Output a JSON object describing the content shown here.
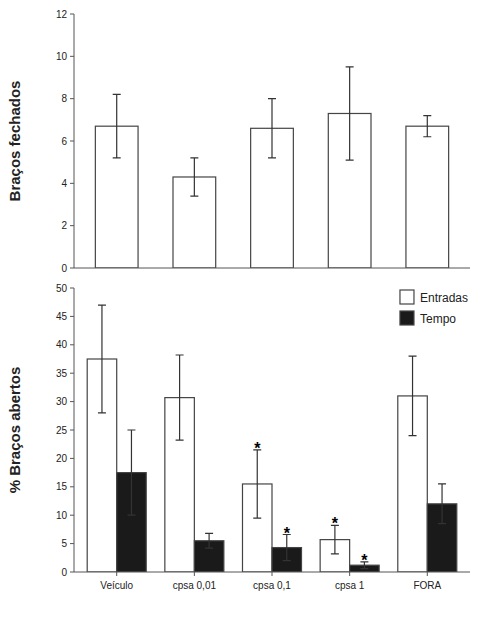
{
  "chart_data": [
    {
      "type": "bar",
      "ylabel": "Braços fechados",
      "categories": [
        null,
        null,
        null,
        null,
        null
      ],
      "values": [
        6.7,
        4.3,
        6.6,
        7.3,
        6.7
      ],
      "errors": [
        1.5,
        0.9,
        1.4,
        2.2,
        0.5
      ],
      "color": "#ffffff",
      "ylim": [
        0,
        12
      ],
      "yticks": [
        0,
        2,
        4,
        6,
        8,
        10,
        12
      ],
      "grid": false
    },
    {
      "type": "bar",
      "ylabel": "% Braços abertos",
      "categories": [
        "Veículo",
        "cpsa 0,01",
        "cpsa 0,1",
        "cpsa 1",
        "FORA"
      ],
      "series": [
        {
          "name": "Entradas",
          "color": "#ffffff",
          "values": [
            37.5,
            30.7,
            15.5,
            5.7,
            31.0
          ],
          "errors": [
            9.5,
            7.5,
            6.0,
            2.5,
            7.0
          ]
        },
        {
          "name": "Tempo",
          "color": "#1a1a1a",
          "values": [
            17.5,
            5.5,
            4.3,
            1.2,
            12.0
          ],
          "errors": [
            7.5,
            1.3,
            2.3,
            0.6,
            3.5
          ]
        }
      ],
      "annotations": [
        {
          "text": "*",
          "series": "Entradas",
          "category": "cpsa 0,1"
        },
        {
          "text": "*",
          "series": "Entradas",
          "category": "cpsa 1"
        },
        {
          "text": "*",
          "series": "Tempo",
          "category": "cpsa 0,1"
        },
        {
          "text": "*",
          "series": "Tempo",
          "category": "cpsa 1"
        }
      ],
      "ylim": [
        0,
        50
      ],
      "yticks": [
        0,
        5,
        10,
        15,
        20,
        25,
        30,
        35,
        40,
        45,
        50
      ],
      "legend": "upper right",
      "grid": false
    }
  ]
}
